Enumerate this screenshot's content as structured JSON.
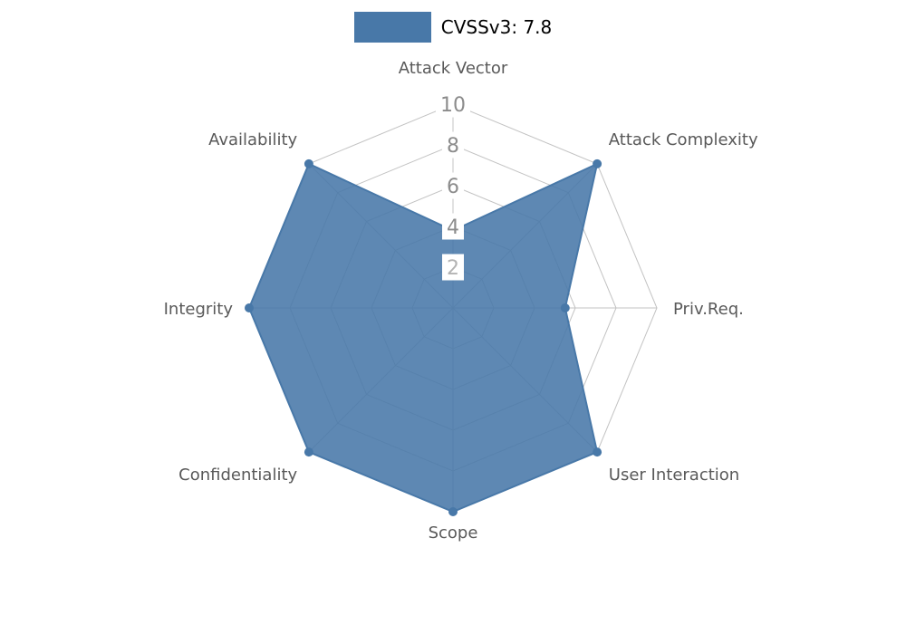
{
  "chart_data": {
    "type": "radar",
    "title": "CVSSv3: 7.8",
    "legend": {
      "label": "CVSSv3: 7.8",
      "position": "top-center"
    },
    "categories": [
      "Attack Vector",
      "Attack Complexity",
      "Priv.Req.",
      "User Interaction",
      "Scope",
      "Confidentiality",
      "Integrity",
      "Availability"
    ],
    "series": [
      {
        "name": "CVSSv3: 7.8",
        "values": [
          3.8,
          10,
          5.5,
          10,
          10,
          10,
          10,
          10
        ]
      }
    ],
    "radial_ticks": [
      "2",
      "4",
      "6",
      "8",
      "10"
    ],
    "rmax": 10,
    "grid": true,
    "colors": {
      "fill": "#4878a8",
      "stroke": "#4878a8",
      "grid": "#c3c3c3",
      "category_label": "#595959",
      "tick_label": "#8c8c8c",
      "tick_label_inner": "#b3b3b3",
      "tick_bg": "#ffffff",
      "legend_text": "#000000",
      "background": "#ffffff"
    }
  }
}
